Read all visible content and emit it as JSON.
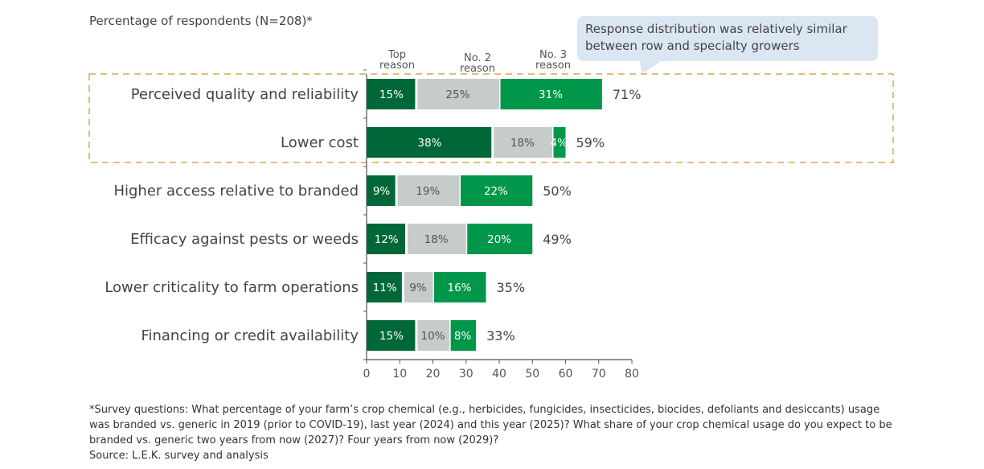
{
  "subtitle": "Percentage of respondents (N=208)*",
  "callout": "Response distribution was relatively similar between row and specialty growers",
  "footnote": "*Survey questions: What percentage of your farm’s crop chemical (e.g., herbicides, fungicides, insecticides, biocides, defoliants and desiccants) usage was branded vs. generic in 2019 (prior to COVID-19), last year (2024) and this year (2025)? What share of your crop chemical usage do you expect to be branded vs. generic two years from now (2027)? Four years from now (2029)?",
  "source": "Source: L.E.K. survey and analysis",
  "chart_data": {
    "type": "bar",
    "orientation": "horizontal",
    "stacked": true,
    "categories": [
      "Perceived quality and reliability",
      "Lower cost",
      "Higher access relative to branded",
      "Efficacy against pests or weeds",
      "Lower criticality to farm operations",
      "Financing or credit availability"
    ],
    "series": [
      {
        "name": "Top reason",
        "color": "#006838",
        "values": [
          15,
          38,
          9,
          12,
          11,
          15
        ]
      },
      {
        "name": "No. 2 reason",
        "color": "#c5ccc9",
        "values": [
          25,
          18,
          19,
          18,
          9,
          10
        ]
      },
      {
        "name": "No. 3 reason",
        "color": "#00974a",
        "values": [
          31,
          4,
          22,
          20,
          16,
          8
        ]
      }
    ],
    "totals": [
      71,
      59,
      50,
      49,
      35,
      33
    ],
    "highlighted_categories": [
      "Perceived quality and reliability",
      "Lower cost"
    ],
    "xlim": [
      0,
      80
    ],
    "xticks": [
      0,
      10,
      20,
      30,
      40,
      50,
      60,
      70,
      80
    ],
    "grid": false,
    "legend": "top, above bars"
  }
}
